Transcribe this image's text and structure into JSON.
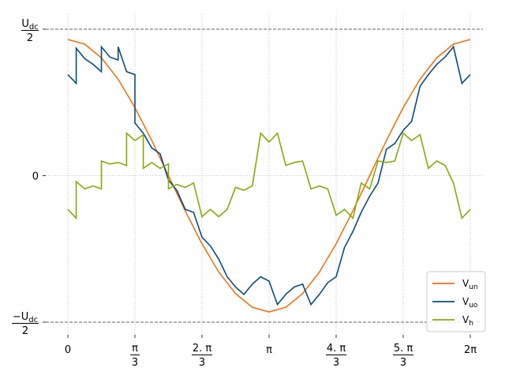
{
  "chart_data": {
    "type": "line",
    "title": "",
    "xlabel": "",
    "ylabel": "",
    "xlim": [
      0,
      6.2832
    ],
    "ylim": [
      -1.0,
      1.0
    ],
    "grid": true,
    "legend_placement": "lower-right",
    "x_ticks": [
      {
        "value": 0,
        "num": "0",
        "den": ""
      },
      {
        "value": 1.0472,
        "num": "π",
        "den": "3"
      },
      {
        "value": 2.0944,
        "num": "2. π",
        "den": "3"
      },
      {
        "value": 3.1416,
        "num": "π",
        "den": ""
      },
      {
        "value": 4.1888,
        "num": "4. π",
        "den": "3"
      },
      {
        "value": 5.236,
        "num": "5. π",
        "den": "3"
      },
      {
        "value": 6.2832,
        "num": "2π",
        "den": ""
      }
    ],
    "y_ticks": [
      {
        "value": 1.0,
        "prefix": "",
        "main": "U",
        "sub": "dc",
        "den": "2"
      },
      {
        "value": 0.0,
        "prefix": "",
        "main": "0",
        "sub": "",
        "den": ""
      },
      {
        "value": -1.0,
        "prefix": "−",
        "main": "U",
        "sub": "dc",
        "den": "2"
      }
    ],
    "reference_lines": [
      1.0,
      -1.0
    ],
    "series": [
      {
        "name": "V",
        "name_sub": "un",
        "color": "#f07114",
        "x": [
          0.0,
          0.2618,
          0.5236,
          0.7854,
          1.0472,
          1.309,
          1.5708,
          1.8326,
          2.0944,
          2.3562,
          2.618,
          2.8798,
          3.1416,
          3.4034,
          3.6652,
          3.927,
          4.1888,
          4.4506,
          4.7124,
          4.9742,
          5.236,
          5.4978,
          5.7596,
          6.0214,
          6.2832
        ],
        "y": [
          0.93,
          0.898,
          0.805,
          0.658,
          0.465,
          0.241,
          0.0,
          -0.241,
          -0.465,
          -0.658,
          -0.805,
          -0.898,
          -0.93,
          -0.898,
          -0.805,
          -0.658,
          -0.465,
          -0.241,
          0.0,
          0.241,
          0.465,
          0.658,
          0.805,
          0.898,
          0.93
        ]
      },
      {
        "name": "V",
        "name_sub": "uo",
        "color": "#0a4a82",
        "x": [
          0.0,
          0.131,
          0.131,
          0.262,
          0.262,
          0.393,
          0.393,
          0.524,
          0.524,
          0.655,
          0.655,
          0.785,
          0.785,
          0.916,
          0.916,
          1.047,
          1.047,
          1.178,
          1.178,
          1.309,
          1.309,
          1.44,
          1.44,
          1.571,
          1.571,
          1.702,
          1.702,
          1.833,
          1.833,
          1.963,
          1.963,
          2.094,
          2.094,
          2.225,
          2.225,
          2.356,
          2.356,
          2.487,
          2.487,
          2.618,
          2.618,
          2.749,
          2.749,
          2.88,
          2.88,
          3.011,
          3.011,
          3.142,
          3.142,
          3.272,
          3.272,
          3.403,
          3.403,
          3.534,
          3.534,
          3.665,
          3.665,
          3.796,
          3.796,
          3.927,
          3.927,
          4.058,
          4.058,
          4.189,
          4.189,
          4.32,
          4.32,
          4.451,
          4.451,
          4.581,
          4.581,
          4.712,
          4.712,
          4.843,
          4.843,
          4.974,
          4.974,
          5.105,
          5.105,
          5.236,
          5.236,
          5.367,
          5.367,
          5.498,
          5.498,
          5.629,
          5.629,
          5.76,
          5.76,
          5.89,
          5.89,
          6.021,
          6.021,
          6.152,
          6.152,
          6.283
        ],
        "y": [
          0.69,
          0.63,
          0.87,
          0.8,
          0.8,
          0.76,
          0.76,
          0.71,
          0.88,
          0.81,
          0.81,
          0.79,
          0.88,
          0.71,
          0.71,
          0.69,
          0.36,
          0.29,
          0.29,
          0.19,
          0.19,
          0.15,
          0.15,
          -0.03,
          -0.03,
          -0.1,
          -0.1,
          -0.23,
          -0.23,
          -0.25,
          -0.25,
          -0.42,
          -0.42,
          -0.48,
          -0.48,
          -0.57,
          -0.57,
          -0.69,
          -0.69,
          -0.76,
          -0.76,
          -0.81,
          -0.81,
          -0.74,
          -0.74,
          -0.69,
          -0.69,
          -0.72,
          -0.72,
          -0.88,
          -0.88,
          -0.81,
          -0.81,
          -0.76,
          -0.76,
          -0.74,
          -0.74,
          -0.88,
          -0.88,
          -0.81,
          -0.81,
          -0.73,
          -0.73,
          -0.69,
          -0.69,
          -0.49,
          -0.49,
          -0.38,
          -0.38,
          -0.25,
          -0.25,
          -0.14,
          -0.14,
          -0.05,
          -0.05,
          0.18,
          0.18,
          0.22,
          0.22,
          0.31,
          0.31,
          0.37,
          0.37,
          0.61,
          0.61,
          0.69,
          0.69,
          0.76,
          0.76,
          0.81,
          0.81,
          0.88,
          0.88,
          0.63,
          0.63,
          0.69
        ]
      },
      {
        "name": "V",
        "name_sub": "h",
        "color": "#86a90a",
        "x": [
          0.0,
          0.131,
          0.131,
          0.262,
          0.262,
          0.393,
          0.393,
          0.524,
          0.524,
          0.655,
          0.655,
          0.785,
          0.785,
          0.916,
          0.916,
          1.047,
          1.047,
          1.178,
          1.178,
          1.309,
          1.309,
          1.44,
          1.44,
          1.571,
          1.571,
          1.702,
          1.702,
          1.833,
          1.833,
          1.963,
          1.963,
          2.094,
          2.094,
          2.225,
          2.225,
          2.356,
          2.356,
          2.487,
          2.487,
          2.618,
          2.618,
          2.749,
          2.749,
          2.88,
          2.88,
          3.011,
          3.011,
          3.142,
          3.142,
          3.272,
          3.272,
          3.403,
          3.403,
          3.534,
          3.534,
          3.665,
          3.665,
          3.796,
          3.796,
          3.927,
          3.927,
          4.058,
          4.058,
          4.189,
          4.189,
          4.32,
          4.32,
          4.451,
          4.451,
          4.581,
          4.581,
          4.712,
          4.712,
          4.843,
          4.843,
          4.974,
          4.974,
          5.105,
          5.105,
          5.236,
          5.236,
          5.367,
          5.367,
          5.498,
          5.498,
          5.629,
          5.629,
          5.76,
          5.76,
          5.89,
          5.89,
          6.021,
          6.021,
          6.152,
          6.152,
          6.283
        ],
        "y": [
          -0.23,
          -0.29,
          -0.04,
          -0.09,
          -0.09,
          -0.07,
          -0.07,
          -0.09,
          0.1,
          0.08,
          0.08,
          0.09,
          0.09,
          0.07,
          0.29,
          0.24,
          0.24,
          0.28,
          0.05,
          0.09,
          0.09,
          0.05,
          0.05,
          0.08,
          -0.09,
          -0.06,
          -0.06,
          -0.08,
          -0.08,
          -0.05,
          -0.05,
          -0.28,
          -0.28,
          -0.23,
          -0.23,
          -0.28,
          -0.28,
          -0.23,
          -0.23,
          -0.08,
          -0.08,
          -0.1,
          -0.1,
          -0.07,
          -0.07,
          0.29,
          0.29,
          0.23,
          0.23,
          0.29,
          0.29,
          0.07,
          0.07,
          0.09,
          0.09,
          0.1,
          0.1,
          -0.09,
          -0.09,
          -0.07,
          -0.07,
          -0.09,
          -0.09,
          -0.27,
          -0.27,
          -0.23,
          -0.23,
          -0.29,
          -0.29,
          -0.05,
          -0.05,
          -0.09,
          -0.09,
          0.1,
          0.1,
          0.09,
          0.09,
          0.1,
          0.1,
          0.29,
          0.29,
          0.24,
          0.24,
          0.28,
          0.28,
          0.05,
          0.05,
          0.1,
          0.1,
          0.07,
          0.07,
          -0.05,
          -0.05,
          -0.29,
          -0.29,
          -0.23
        ]
      }
    ]
  }
}
